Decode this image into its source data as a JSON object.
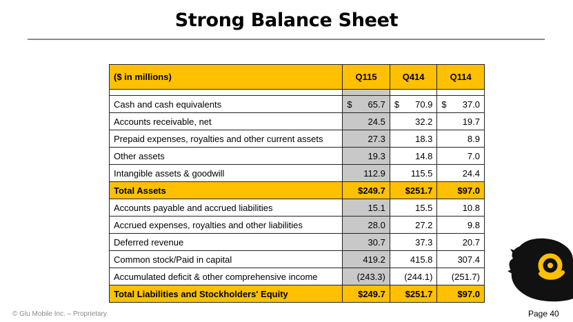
{
  "title": "Strong Balance Sheet",
  "table": {
    "header": [
      "($ in millions)",
      "Q115",
      "Q414",
      "Q114"
    ],
    "rows": [
      {
        "label": "Cash and cash equivalents",
        "values": [
          "65.7",
          "70.9",
          "37.0"
        ],
        "currency": "$",
        "total": false
      },
      {
        "label": "Accounts receivable, net",
        "values": [
          "24.5",
          "32.2",
          "19.7"
        ],
        "currency": "",
        "total": false
      },
      {
        "label": "Prepaid expenses, royalties and other current assets",
        "values": [
          "27.3",
          "18.3",
          "8.9"
        ],
        "currency": "",
        "total": false
      },
      {
        "label": "Other assets",
        "values": [
          "19.3",
          "14.8",
          "7.0"
        ],
        "currency": "",
        "total": false
      },
      {
        "label": "Intangible assets & goodwill",
        "values": [
          "112.9",
          "115.5",
          "24.4"
        ],
        "currency": "",
        "total": false
      },
      {
        "label": "Total Assets",
        "values": [
          "$249.7",
          "$251.7",
          "$97.0"
        ],
        "currency": "",
        "total": true
      },
      {
        "label": "Accounts payable and accrued liabilities",
        "values": [
          "15.1",
          "15.5",
          "10.8"
        ],
        "currency": "",
        "total": false
      },
      {
        "label": "Accrued expenses, royalties and other liabilities",
        "values": [
          "28.0",
          "27.2",
          "9.8"
        ],
        "currency": "",
        "total": false
      },
      {
        "label": "Deferred revenue",
        "values": [
          "30.7",
          "37.3",
          "20.7"
        ],
        "currency": "",
        "total": false
      },
      {
        "label": "Common stock/Paid in capital",
        "values": [
          "419.2",
          "415.8",
          "307.4"
        ],
        "currency": "",
        "total": false
      },
      {
        "label": "Accumulated deficit & other comprehensive income",
        "values": [
          "(243.3)",
          "(244.1)",
          "(251.7)"
        ],
        "currency": "",
        "total": false
      },
      {
        "label": "Total Liabilities and Stockholders' Equity",
        "values": [
          "$249.7",
          "$251.7",
          "$97.0"
        ],
        "currency": "",
        "total": true
      }
    ]
  },
  "footer": {
    "left": "© Glu Mobile Inc. – Proprietary",
    "right": "Page 40"
  },
  "colors": {
    "accent": "#ffc000",
    "highlight_column": "#c8c8c8",
    "rule": "#8a8a8a"
  },
  "logo_icon": "glu-logo-icon"
}
